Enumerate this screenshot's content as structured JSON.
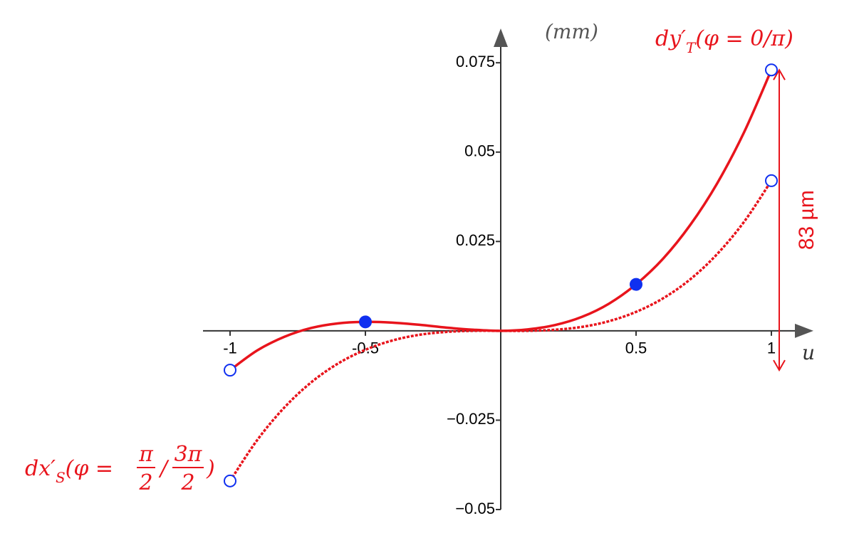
{
  "chart_data": {
    "type": "line",
    "y_label": "(mm)",
    "x_label": "u",
    "x": [
      -1,
      -0.9,
      -0.8,
      -0.7,
      -0.6,
      -0.5,
      -0.4,
      -0.3,
      -0.2,
      -0.1,
      0,
      0.1,
      0.2,
      0.3,
      0.4,
      0.5,
      0.6,
      0.7,
      0.8,
      0.9,
      1
    ],
    "series": [
      {
        "label_parts": [
          "dy′",
          "T",
          "(φ = 0/π)"
        ],
        "color": "#e8141c",
        "dashed": false,
        "values": [
          -0.011,
          -0.0055,
          -0.0017,
          0.0008,
          0.0021,
          0.0025,
          0.0023,
          0.0017,
          0.0009,
          0.0003,
          0,
          0.0004,
          0.0016,
          0.0039,
          0.0076,
          0.013,
          0.0202,
          0.0296,
          0.0413,
          0.0557,
          0.073
        ]
      },
      {
        "label_parts": [
          "dx′",
          "S",
          "(φ = ",
          "π",
          "2",
          "/",
          "3π",
          "2",
          ")"
        ],
        "color": "#e8141c",
        "dashed": true,
        "values": [
          -0.042,
          -0.0306,
          -0.0215,
          -0.0144,
          -0.0091,
          -0.0053,
          -0.0027,
          -0.0011,
          -0.0003,
          0,
          0,
          0,
          0.0003,
          0.0011,
          0.0027,
          0.0053,
          0.0091,
          0.0144,
          0.0215,
          0.0306,
          0.042
        ]
      }
    ],
    "points": [
      {
        "x": -1,
        "y": -0.011,
        "filled": false
      },
      {
        "x": -0.5,
        "y": 0.0025,
        "filled": true
      },
      {
        "x": 0.5,
        "y": 0.013,
        "filled": true
      },
      {
        "x": 1,
        "y": 0.073,
        "filled": false
      },
      {
        "x": -1,
        "y": -0.042,
        "filled": false
      },
      {
        "x": 1,
        "y": 0.042,
        "filled": false
      }
    ],
    "marker_color": "#1030f0",
    "annotation": {
      "text": "83 µm",
      "span": [
        -0.011,
        0.073
      ],
      "color": "#e8141c"
    },
    "xlim": [
      -1.1,
      1.15
    ],
    "ylim": [
      -0.05,
      0.083
    ],
    "xticks": [
      -1,
      -0.5,
      0.5,
      1
    ],
    "yticks": [
      {
        "value": -0.05,
        "label": "−0.05"
      },
      {
        "value": -0.025,
        "label": "−0.025"
      },
      0.025,
      0.05,
      0.075
    ]
  }
}
